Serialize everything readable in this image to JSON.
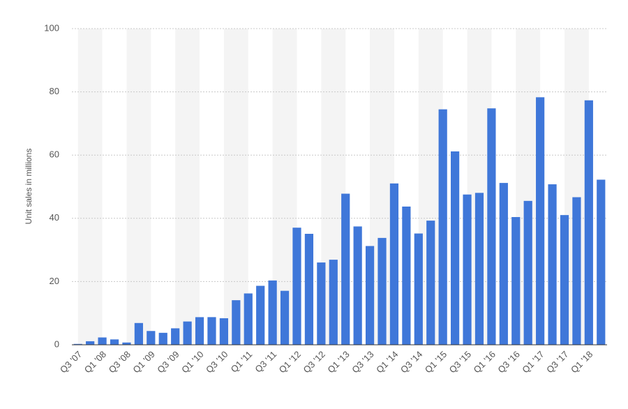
{
  "chart_data": {
    "type": "bar",
    "y_label": "Unit sales in millions",
    "categories": [
      "Q3 '07",
      null,
      "Q1 '08",
      null,
      "Q3 '08",
      null,
      "Q1 '09",
      null,
      "Q3 '09",
      null,
      "Q1 '10",
      null,
      "Q3 '10",
      null,
      "Q1 '11",
      null,
      "Q3 '11",
      null,
      "Q1 '12",
      null,
      "Q3 '12",
      null,
      "Q1 '13",
      null,
      "Q3 '13",
      null,
      "Q1 '14",
      null,
      "Q3 '14",
      null,
      "Q1 '15",
      null,
      "Q3 '15",
      null,
      "Q1 '16",
      null,
      "Q3 '16",
      null,
      "Q1 '17",
      null,
      "Q3 '17",
      null,
      "Q1 '18",
      null
    ],
    "values": [
      0.27,
      1.12,
      2.32,
      1.7,
      0.72,
      6.89,
      4.36,
      3.79,
      5.21,
      7.37,
      8.74,
      8.75,
      8.4,
      14.1,
      16.24,
      18.65,
      20.34,
      17.07,
      37.04,
      35.1,
      26.03,
      26.91,
      47.79,
      37.43,
      31.24,
      33.8,
      51.03,
      43.72,
      35.2,
      39.27,
      74.47,
      61.17,
      47.53,
      48.05,
      74.78,
      51.19,
      40.4,
      45.51,
      78.29,
      50.76,
      41.03,
      46.68,
      77.32,
      52.22
    ],
    "color": "#3f77d9",
    "ylim": [
      0,
      100
    ],
    "yticks": [
      0,
      20,
      40,
      60,
      80,
      100
    ],
    "grid": true
  }
}
